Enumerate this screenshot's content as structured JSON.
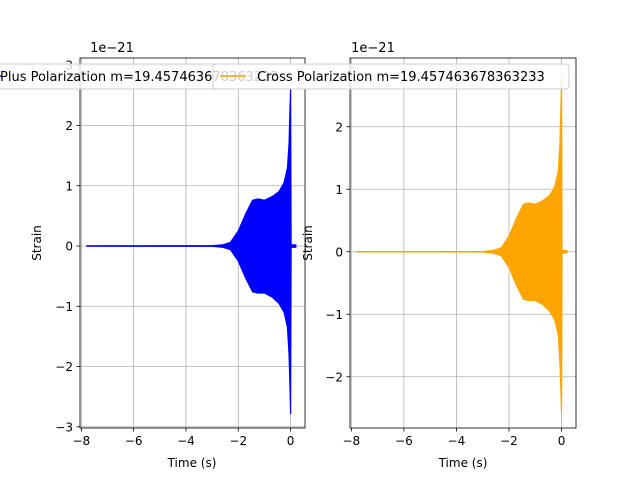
{
  "chart_data": [
    {
      "type": "line",
      "legend": {
        "label": "Plus Polarization m=19.457463678363233",
        "placement": "top"
      },
      "xlabel": "Time (s)",
      "ylabel": "Strain",
      "y_exponent": "1e−21",
      "xlim": [
        -8.05,
        0.55
      ],
      "ylim": [
        -3.02,
        3.12
      ],
      "xticks": [
        -8,
        -6,
        -4,
        -2,
        0
      ],
      "xtick_labels": [
        "−8",
        "−6",
        "−4",
        "−2",
        "0"
      ],
      "yticks": [
        -3,
        -2,
        -1,
        0,
        1,
        2,
        3
      ],
      "ytick_labels": [
        "−3",
        "−2",
        "−1",
        "0",
        "1",
        "2",
        "3"
      ],
      "grid": true,
      "color": "#0000ff",
      "series": [
        {
          "name": "Plus Polarization m=19.457463678363233",
          "envelope": {
            "t": [
              -7.8,
              -3.0,
              -2.6,
              -2.3,
              -2.0,
              -1.7,
              -1.45,
              -1.25,
              -1.0,
              -0.7,
              -0.45,
              -0.25,
              -0.12,
              -0.06,
              -0.02,
              0.0,
              0.02,
              0.2
            ],
            "upper": [
              0.0,
              0.005,
              0.02,
              0.06,
              0.25,
              0.55,
              0.76,
              0.78,
              0.76,
              0.82,
              0.9,
              1.05,
              1.3,
              1.7,
              2.35,
              2.6,
              0.02,
              0.02
            ],
            "lower": [
              0.0,
              -0.005,
              -0.02,
              -0.06,
              -0.25,
              -0.55,
              -0.76,
              -0.78,
              -0.78,
              -0.85,
              -0.95,
              -1.1,
              -1.35,
              -1.8,
              -2.4,
              -2.78,
              -0.02,
              -0.02
            ]
          }
        }
      ]
    },
    {
      "type": "line",
      "legend": {
        "label": "Cross Polarization m=19.457463678363233",
        "placement": "top"
      },
      "xlabel": "Time (s)",
      "ylabel": "Strain",
      "y_exponent": "1e−21",
      "xlim": [
        -8.05,
        0.55
      ],
      "ylim": [
        -2.82,
        3.1
      ],
      "xticks": [
        -8,
        -6,
        -4,
        -2,
        0
      ],
      "xtick_labels": [
        "−8",
        "−6",
        "−4",
        "−2",
        "0"
      ],
      "yticks": [
        -2,
        -1,
        0,
        1,
        2
      ],
      "ytick_labels": [
        "−2",
        "−1",
        "0",
        "1",
        "2"
      ],
      "grid": true,
      "color": "#ffa500",
      "series": [
        {
          "name": "Cross Polarization m=19.457463678363233",
          "envelope": {
            "t": [
              -7.8,
              -3.0,
              -2.6,
              -2.3,
              -2.0,
              -1.7,
              -1.45,
              -1.25,
              -1.0,
              -0.7,
              -0.45,
              -0.25,
              -0.12,
              -0.06,
              -0.02,
              0.0,
              0.02,
              0.2
            ],
            "upper": [
              0.0,
              0.005,
              0.02,
              0.06,
              0.25,
              0.55,
              0.76,
              0.78,
              0.76,
              0.82,
              0.9,
              1.05,
              1.3,
              1.75,
              2.4,
              2.75,
              0.02,
              0.02
            ],
            "lower": [
              0.0,
              -0.005,
              -0.02,
              -0.06,
              -0.25,
              -0.55,
              -0.76,
              -0.78,
              -0.78,
              -0.85,
              -0.95,
              -1.1,
              -1.35,
              -1.8,
              -2.3,
              -2.58,
              -0.02,
              -0.02
            ]
          }
        }
      ]
    }
  ]
}
